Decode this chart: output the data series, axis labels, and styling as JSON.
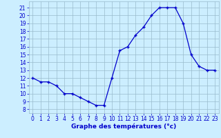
{
  "hours": [
    0,
    1,
    2,
    3,
    4,
    5,
    6,
    7,
    8,
    9,
    10,
    11,
    12,
    13,
    14,
    15,
    16,
    17,
    18,
    19,
    20,
    21,
    22,
    23
  ],
  "temps": [
    12,
    11.5,
    11.5,
    11,
    10,
    10,
    9.5,
    9,
    8.5,
    8.5,
    12,
    15.5,
    16,
    17.5,
    18.5,
    20,
    21,
    21,
    21,
    19,
    15,
    13.5,
    13,
    13
  ],
  "line_color": "#0000cc",
  "marker": "+",
  "marker_size": 3.5,
  "bg_color": "#cceeff",
  "grid_color": "#99bbcc",
  "xlabel": "Graphe des températures (°c)",
  "ylabel_ticks": [
    8,
    9,
    10,
    11,
    12,
    13,
    14,
    15,
    16,
    17,
    18,
    19,
    20,
    21
  ],
  "ylim": [
    7.5,
    21.8
  ],
  "xlim": [
    -0.5,
    23.5
  ],
  "xticks": [
    0,
    1,
    2,
    3,
    4,
    5,
    6,
    7,
    8,
    9,
    10,
    11,
    12,
    13,
    14,
    15,
    16,
    17,
    18,
    19,
    20,
    21,
    22,
    23
  ],
  "xlabel_color": "#0000cc",
  "tick_color": "#0000cc"
}
